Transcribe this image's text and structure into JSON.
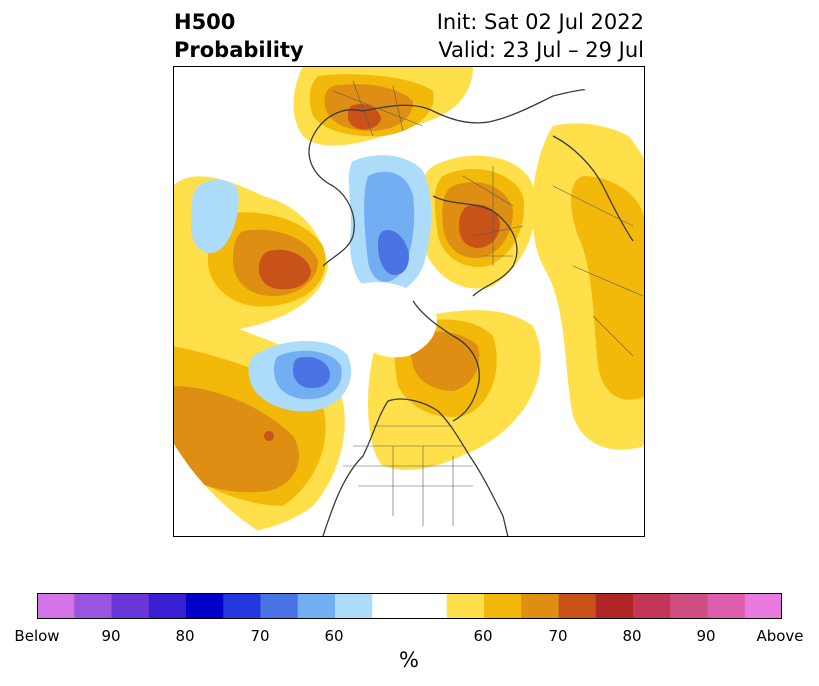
{
  "title": {
    "variable": "H500",
    "subtitle": "Probability",
    "init": "Init: Sat 02 Jul 2022",
    "valid": "Valid: 23 Jul – 29 Jul"
  },
  "map": {
    "projection": "polar-stereographic-north",
    "features": {
      "coastlines": true,
      "country_borders": true,
      "us_states": true
    },
    "anomalies": [
      {
        "region": "North Pacific / Gulf of Alaska",
        "sign": "above",
        "level": "70-75"
      },
      {
        "region": "Northeast Pacific off Pacific Northwest",
        "sign": "below",
        "level": "70-80"
      },
      {
        "region": "Western Russia",
        "sign": "above",
        "level": "70-75"
      },
      {
        "region": "Northern Siberia / Kara Sea",
        "sign": "below",
        "level": "70-80"
      },
      {
        "region": "Northern Europe / Scandinavia",
        "sign": "above",
        "level": "65-70"
      },
      {
        "region": "Central North Pacific",
        "sign": "below",
        "level": "60-65"
      },
      {
        "region": "Eastern North Pacific",
        "sign": "above",
        "level": "65-75"
      },
      {
        "region": "Greenland",
        "sign": "above",
        "level": "65-70"
      },
      {
        "region": "Central / Eastern Asia",
        "sign": "above",
        "level": "55-65"
      }
    ]
  },
  "colorbar": {
    "unit": "%",
    "colors": [
      "#d473e8",
      "#9a55e0",
      "#6a36d8",
      "#3a1ed2",
      "#0000c8",
      "#2437de",
      "#4a74e4",
      "#74aef2",
      "#acdcfa",
      "#ffffff",
      "#ffffff",
      "#ffe04a",
      "#f2b90a",
      "#de8e12",
      "#c85218",
      "#b02624",
      "#c23658",
      "#cf4e82",
      "#dc5eac",
      "#e87ae0"
    ],
    "labels": [
      "Below",
      "90",
      "80",
      "70",
      "60",
      "60",
      "70",
      "80",
      "90",
      "Above"
    ]
  }
}
